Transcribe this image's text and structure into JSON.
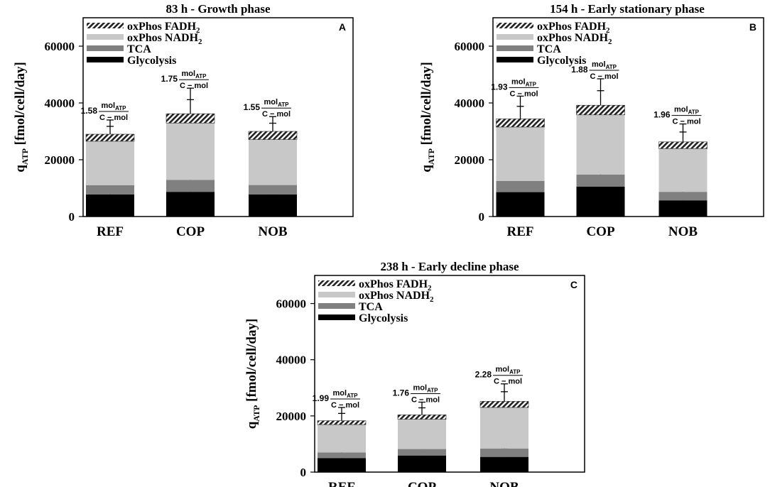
{
  "chart_data": [
    {
      "type": "bar",
      "stacked": true,
      "panel_letter": "A",
      "title": "83 h - Growth phase",
      "ylabel_main": "q",
      "ylabel_sub": "ATP",
      "ylabel_rest": " [fmol/cell/day]",
      "ylim": [
        0,
        70000
      ],
      "yticks": [
        "0",
        "20000",
        "40000",
        "60000"
      ],
      "categories": [
        "REF",
        "COP",
        "NOB"
      ],
      "legend_position": "top-left",
      "series": [
        {
          "name": "Glycolysis",
          "color": "#000000",
          "pattern": "solid",
          "values": [
            7800,
            8700,
            7800
          ],
          "err": [
            700,
            1100,
            400
          ]
        },
        {
          "name": "TCA",
          "color": "#808080",
          "pattern": "solid",
          "values": [
            3200,
            4200,
            3300
          ],
          "err": [
            400,
            500,
            300
          ]
        },
        {
          "name": "oxPhos NADH2",
          "color": "#c8c8c8",
          "pattern": "solid",
          "values": [
            15500,
            20000,
            16000
          ],
          "err": [
            0,
            0,
            0
          ]
        },
        {
          "name": "oxPhos FADH2",
          "color": "#333333",
          "pattern": "hatch",
          "values": [
            2500,
            3300,
            2900
          ],
          "err": [
            5000,
            9000,
            5200
          ]
        }
      ],
      "yield_labels": [
        {
          "num": "1.58",
          "frac_top": "mol",
          "frac_top_sub": "ATP",
          "frac_bottom": "C − mol"
        },
        {
          "num": "1.75",
          "frac_top": "mol",
          "frac_top_sub": "ATP",
          "frac_bottom": "C − mol"
        },
        {
          "num": "1.55",
          "frac_top": "mol",
          "frac_top_sub": "ATP",
          "frac_bottom": "C − mol"
        }
      ],
      "legend_labels": [
        {
          "text": "oxPhos FADH",
          "sub": "2"
        },
        {
          "text": "oxPhos NADH",
          "sub": "2"
        },
        {
          "text": "TCA",
          "sub": ""
        },
        {
          "text": "Glycolysis",
          "sub": ""
        }
      ]
    },
    {
      "type": "bar",
      "stacked": true,
      "panel_letter": "B",
      "title": "154 h - Early stationary phase",
      "ylabel_main": "q",
      "ylabel_sub": "ATP",
      "ylabel_rest": " [fmol/cell/day]",
      "ylim": [
        0,
        70000
      ],
      "yticks": [
        "0",
        "20000",
        "40000",
        "60000"
      ],
      "categories": [
        "REF",
        "COP",
        "NOB"
      ],
      "legend_position": "top-left",
      "series": [
        {
          "name": "Glycolysis",
          "color": "#000000",
          "pattern": "solid",
          "values": [
            8600,
            10500,
            5700
          ],
          "err": [
            300,
            1300,
            400
          ]
        },
        {
          "name": "TCA",
          "color": "#808080",
          "pattern": "solid",
          "values": [
            3900,
            4300,
            3000
          ],
          "err": [
            300,
            800,
            300
          ]
        },
        {
          "name": "oxPhos NADH2",
          "color": "#c8c8c8",
          "pattern": "solid",
          "values": [
            19000,
            21000,
            15200
          ],
          "err": [
            0,
            0,
            0
          ]
        },
        {
          "name": "oxPhos FADH2",
          "color": "#333333",
          "pattern": "hatch",
          "values": [
            2900,
            3400,
            2400
          ],
          "err": [
            8000,
            9300,
            6300
          ]
        }
      ],
      "yield_labels": [
        {
          "num": "1.93",
          "frac_top": "mol",
          "frac_top_sub": "ATP",
          "frac_bottom": "C − mol"
        },
        {
          "num": "1.88",
          "frac_top": "mol",
          "frac_top_sub": "ATP",
          "frac_bottom": "C − mol"
        },
        {
          "num": "1.96",
          "frac_top": "mol",
          "frac_top_sub": "ATP",
          "frac_bottom": "C − mol"
        }
      ],
      "legend_labels": [
        {
          "text": "oxPhos FADH",
          "sub": "2"
        },
        {
          "text": "oxPhos NADH",
          "sub": "2"
        },
        {
          "text": "TCA",
          "sub": ""
        },
        {
          "text": "Glycolysis",
          "sub": ""
        }
      ]
    },
    {
      "type": "bar",
      "stacked": true,
      "panel_letter": "C",
      "title": "238 h - Early decline phase",
      "ylabel_main": "q",
      "ylabel_sub": "ATP",
      "ylabel_rest": " [fmol/cell/day]",
      "ylim": [
        0,
        70000
      ],
      "yticks": [
        "0",
        "20000",
        "40000",
        "60000"
      ],
      "categories": [
        "REF",
        "COP",
        "NOB"
      ],
      "legend_position": "top-left",
      "series": [
        {
          "name": "Glycolysis",
          "color": "#000000",
          "pattern": "solid",
          "values": [
            5000,
            5900,
            5400
          ],
          "err": [
            400,
            300,
            300
          ]
        },
        {
          "name": "TCA",
          "color": "#808080",
          "pattern": "solid",
          "values": [
            2000,
            2300,
            3000
          ],
          "err": [
            300,
            300,
            200
          ]
        },
        {
          "name": "oxPhos NADH2",
          "color": "#c8c8c8",
          "pattern": "solid",
          "values": [
            9900,
            10600,
            14600
          ],
          "err": [
            0,
            0,
            0
          ]
        },
        {
          "name": "oxPhos FADH2",
          "color": "#333333",
          "pattern": "hatch",
          "values": [
            1400,
            1600,
            2200
          ],
          "err": [
            4700,
            4500,
            6200
          ]
        }
      ],
      "yield_labels": [
        {
          "num": "1.99",
          "frac_top": "mol",
          "frac_top_sub": "ATP",
          "frac_bottom": "C − mol"
        },
        {
          "num": "1.76",
          "frac_top": "mol",
          "frac_top_sub": "ATP",
          "frac_bottom": "C − mol"
        },
        {
          "num": "2.28",
          "frac_top": "mol",
          "frac_top_sub": "ATP",
          "frac_bottom": "C − mol"
        }
      ],
      "legend_labels": [
        {
          "text": "oxPhos FADH",
          "sub": "2"
        },
        {
          "text": "oxPhos NADH",
          "sub": "2"
        },
        {
          "text": "TCA",
          "sub": ""
        },
        {
          "text": "Glycolysis",
          "sub": ""
        }
      ]
    }
  ]
}
